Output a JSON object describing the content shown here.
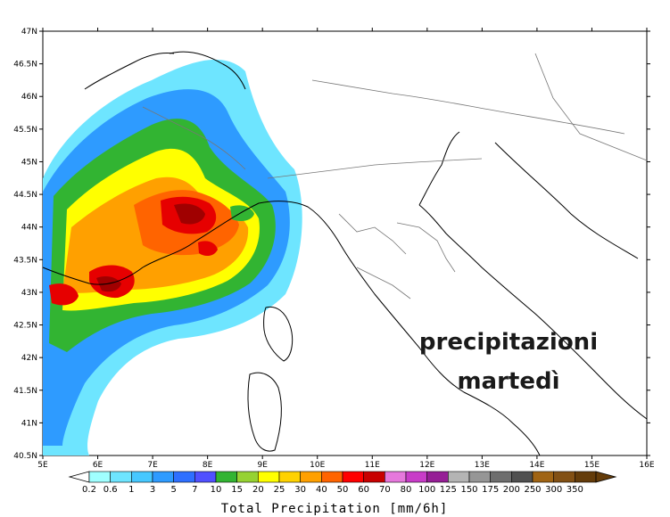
{
  "map": {
    "lat_labels": [
      "47N",
      "46.5N",
      "46N",
      "45.5N",
      "45N",
      "44.5N",
      "44N",
      "43.5N",
      "43N",
      "42.5N",
      "42N",
      "41.5N",
      "41N",
      "40.5N"
    ],
    "lon_labels": [
      "5E",
      "6E",
      "7E",
      "8E",
      "9E",
      "10E",
      "11E",
      "12E",
      "13E",
      "14E",
      "15E",
      "16E"
    ],
    "overlay_text": [
      "precipitazioni",
      "martedì"
    ]
  },
  "legend": {
    "title": "Total Precipitation [mm/6h]",
    "labels": [
      "0.2",
      "0.6",
      "1",
      "3",
      "5",
      "7",
      "10",
      "15",
      "20",
      "25",
      "30",
      "40",
      "50",
      "60",
      "70",
      "80",
      "100",
      "125",
      "150",
      "175",
      "200",
      "250",
      "300",
      "350"
    ],
    "colors": [
      "#a0ffff",
      "#6ee5ff",
      "#46c8ff",
      "#2e9bff",
      "#2e6fff",
      "#5050ff",
      "#32b432",
      "#96d232",
      "#ffff00",
      "#ffd200",
      "#ffa000",
      "#ff6400",
      "#ff0000",
      "#c80000",
      "#e678dc",
      "#c83cc8",
      "#961e96",
      "#b4b4b4",
      "#969696",
      "#6e6e6e",
      "#505050",
      "#a06414",
      "#825014",
      "#643c0a"
    ]
  },
  "precip_colors": {
    "light_blue": "#6ee5ff",
    "blue": "#2e9bff",
    "green": "#32b432",
    "yellow": "#ffff00",
    "orange": "#ffa000",
    "red_orange": "#ff6400",
    "red": "#e60000",
    "dark_red": "#a00000"
  }
}
